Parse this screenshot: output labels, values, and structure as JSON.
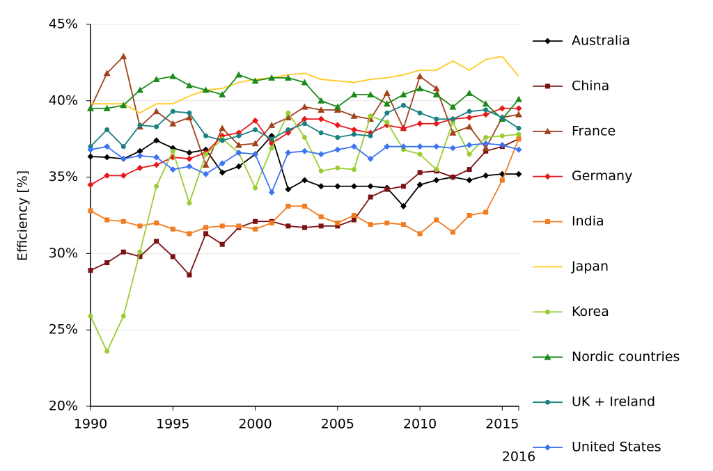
{
  "chart_data": {
    "type": "line",
    "y_label": "Efficiency [%]",
    "x": [
      1990,
      1991,
      1992,
      1993,
      1994,
      1995,
      1996,
      1997,
      1998,
      1999,
      2000,
      2001,
      2002,
      2003,
      2004,
      2005,
      2006,
      2007,
      2008,
      2009,
      2010,
      2011,
      2012,
      2013,
      2014,
      2015,
      2016
    ],
    "xlim": [
      1990,
      2016
    ],
    "xticks": [
      1990,
      1995,
      2000,
      2005,
      2010,
      2015,
      2016
    ],
    "ylim": [
      20,
      45
    ],
    "yticks": [
      {
        "value": 20,
        "label": "20%"
      },
      {
        "value": 25,
        "label": "25%"
      },
      {
        "value": 30,
        "label": "30%"
      },
      {
        "value": 35,
        "label": "35%"
      },
      {
        "value": 40,
        "label": "40%"
      },
      {
        "value": 45,
        "label": "45%"
      }
    ],
    "grid": true,
    "legend": "right",
    "series": [
      {
        "name": "Australia",
        "color": "#000000",
        "marker": "diamond",
        "values": [
          36.35,
          36.3,
          36.2,
          36.7,
          37.4,
          36.9,
          36.6,
          36.8,
          35.3,
          35.7,
          36.5,
          37.7,
          34.2,
          34.8,
          34.4,
          34.4,
          34.4,
          34.4,
          34.3,
          33.1,
          34.5,
          34.8,
          35.0,
          34.8,
          35.1,
          35.2,
          35.2
        ]
      },
      {
        "name": "China",
        "color": "#7b1113",
        "marker": "square",
        "values": [
          28.9,
          29.4,
          30.1,
          29.8,
          30.8,
          29.8,
          28.6,
          31.3,
          30.6,
          31.7,
          32.1,
          32.1,
          31.8,
          31.7,
          31.8,
          31.8,
          32.2,
          33.7,
          34.2,
          34.4,
          35.3,
          35.4,
          35.0,
          35.5,
          36.7,
          37.0,
          37.5
        ]
      },
      {
        "name": "France",
        "color": "#a0421c",
        "marker": "triangle",
        "values": [
          39.5,
          41.8,
          42.9,
          38.3,
          39.3,
          38.5,
          38.9,
          35.8,
          38.2,
          37.1,
          37.2,
          38.4,
          38.9,
          39.6,
          39.4,
          39.4,
          39.0,
          38.8,
          40.5,
          38.2,
          41.6,
          40.8,
          37.9,
          38.3,
          36.9,
          38.9,
          39.1
        ]
      },
      {
        "name": "Germany",
        "color": "#e8161a",
        "marker": "diamond",
        "values": [
          34.5,
          35.1,
          35.1,
          35.6,
          35.8,
          36.3,
          36.2,
          36.6,
          37.7,
          37.9,
          38.7,
          37.2,
          37.9,
          38.8,
          38.8,
          38.4,
          38.1,
          37.9,
          38.4,
          38.2,
          38.5,
          38.5,
          38.8,
          38.9,
          39.1,
          39.5,
          39.5
        ]
      },
      {
        "name": "India",
        "color": "#f07d22",
        "marker": "square",
        "values": [
          32.8,
          32.2,
          32.1,
          31.8,
          32.0,
          31.6,
          31.3,
          31.7,
          31.8,
          31.8,
          31.6,
          32.0,
          33.1,
          33.1,
          32.4,
          32.0,
          32.5,
          31.9,
          32.0,
          31.9,
          31.3,
          32.2,
          31.4,
          32.5,
          32.7,
          34.8,
          37.5
        ]
      },
      {
        "name": "Japan",
        "color": "#ffc91f",
        "values": [
          39.8,
          39.8,
          39.8,
          39.2,
          39.8,
          39.8,
          40.3,
          40.7,
          40.8,
          41.2,
          41.4,
          41.5,
          41.7,
          41.8,
          41.4,
          41.3,
          41.2,
          41.4,
          41.5,
          41.7,
          42.0,
          42.0,
          42.6,
          42.0,
          42.7,
          42.9,
          41.6
        ]
      },
      {
        "name": "Korea",
        "color": "#9acd32",
        "marker": "circle",
        "values": [
          25.9,
          23.6,
          25.9,
          30.1,
          34.4,
          36.7,
          33.3,
          36.5,
          37.5,
          36.6,
          34.3,
          36.9,
          39.2,
          37.6,
          35.4,
          35.6,
          35.5,
          39.0,
          38.6,
          36.8,
          36.5,
          35.5,
          38.6,
          36.5,
          37.6,
          37.7,
          37.8
        ]
      },
      {
        "name": "Nordic countries",
        "color": "#1a8a1a",
        "marker": "triangle",
        "values": [
          39.5,
          39.5,
          39.7,
          40.7,
          41.4,
          41.6,
          41.0,
          40.7,
          40.4,
          41.7,
          41.3,
          41.5,
          41.5,
          41.2,
          40.0,
          39.6,
          40.4,
          40.4,
          39.8,
          40.4,
          40.8,
          40.4,
          39.6,
          40.5,
          39.8,
          38.8,
          40.1
        ]
      },
      {
        "name": "UK + Ireland",
        "color": "#1a8080",
        "marker": "circle",
        "values": [
          37.0,
          38.1,
          37.0,
          38.4,
          38.3,
          39.3,
          39.2,
          37.7,
          37.4,
          37.7,
          38.1,
          37.5,
          38.1,
          38.5,
          37.9,
          37.6,
          37.8,
          37.7,
          39.2,
          39.7,
          39.2,
          38.8,
          38.8,
          39.3,
          39.4,
          38.9,
          38.2
        ]
      },
      {
        "name": "United States",
        "color": "#3b73f0",
        "marker": "diamond",
        "values": [
          36.8,
          37.0,
          36.2,
          36.4,
          36.3,
          35.5,
          35.7,
          35.2,
          35.9,
          36.6,
          36.5,
          34.0,
          36.6,
          36.7,
          36.5,
          36.8,
          37.0,
          36.2,
          37.0,
          37.0,
          37.0,
          37.0,
          36.9,
          37.1,
          37.2,
          37.1,
          36.8
        ]
      }
    ]
  }
}
